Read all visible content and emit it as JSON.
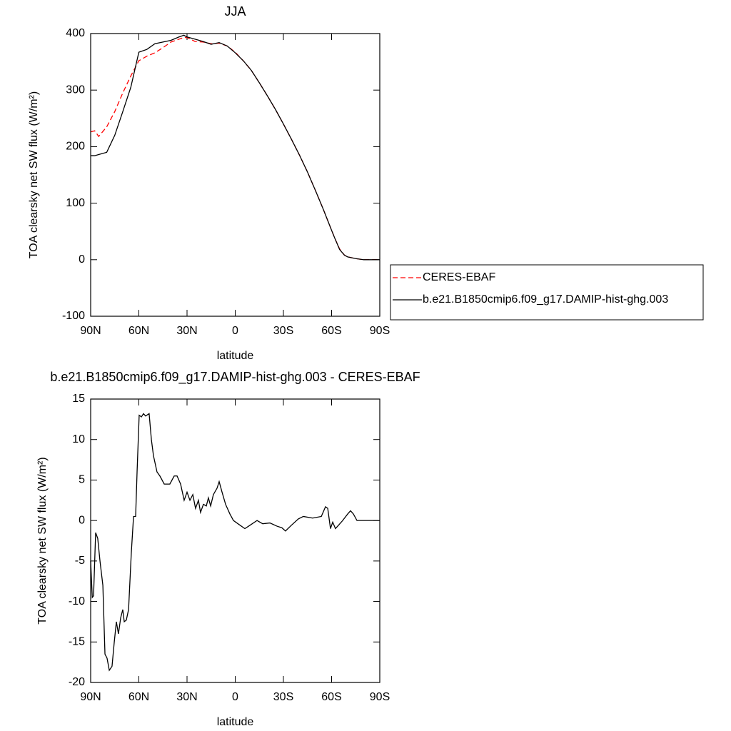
{
  "chart_data": [
    {
      "type": "line",
      "title": "JJA",
      "xlabel": "latitude",
      "ylabel": "TOA clearsky net SW flux (W/m²)",
      "x": [
        90,
        87.5,
        85,
        80,
        75,
        70,
        65,
        60,
        55,
        50,
        45,
        40,
        35,
        32,
        30,
        25,
        20,
        15,
        10,
        5,
        0,
        -5,
        -10,
        -15,
        -20,
        -25,
        -30,
        -35,
        -40,
        -45,
        -50,
        -55,
        -60,
        -62,
        -65,
        -68,
        -70,
        -75,
        -80,
        -85,
        -90
      ],
      "series": [
        {
          "name": "CERES-EBAF",
          "color": "#ff0000",
          "dashed": true,
          "values": [
            226,
            228,
            218,
            235,
            262,
            295,
            325,
            352,
            360,
            366,
            375,
            385,
            390,
            393,
            393,
            386,
            385,
            382,
            383,
            378,
            367,
            352,
            335,
            313,
            290,
            266,
            240,
            213,
            185,
            155,
            122,
            88,
            52,
            38,
            19,
            8,
            5,
            2,
            0,
            0,
            0
          ]
        },
        {
          "name": "b.e21.B1850cmip6.f09_g17.DAMIP-hist-ghg.003",
          "color": "#000000",
          "dashed": false,
          "values": [
            184,
            184,
            186,
            190,
            220,
            262,
            305,
            367,
            372,
            382,
            385,
            388,
            394,
            397,
            394,
            390,
            386,
            381,
            384,
            378,
            366,
            352,
            335,
            313,
            290,
            266,
            240,
            213,
            185,
            155,
            122,
            88,
            52,
            38,
            18,
            8,
            5,
            2,
            0,
            0,
            0
          ]
        }
      ],
      "xlim": [
        90,
        -90
      ],
      "xticks": [
        {
          "value": 90,
          "label": "90N"
        },
        {
          "value": 60,
          "label": "60N"
        },
        {
          "value": 30,
          "label": "30N"
        },
        0,
        {
          "value": -30,
          "label": "30S"
        },
        {
          "value": -60,
          "label": "60S"
        },
        {
          "value": -90,
          "label": "90S"
        }
      ],
      "ylim": [
        -100,
        400
      ],
      "yticks": [
        -100,
        0,
        100,
        200,
        300,
        400
      ],
      "legend": "right"
    },
    {
      "type": "line",
      "title": "b.e21.B1850cmip6.f09_g17.DAMIP-hist-ghg.003 - CERES-EBAF",
      "xlabel": "latitude",
      "ylabel": "TOA clearsky net SW flux (W/m²)",
      "color": "#000000",
      "x": [
        90,
        89,
        88.2,
        86.9,
        85.6,
        84.2,
        82.4,
        81.1,
        79.8,
        78.4,
        76.7,
        75.3,
        74,
        72.7,
        71.3,
        70,
        69.1,
        67.8,
        66.4,
        64.7,
        63.3,
        62,
        61.1,
        59.8,
        58.4,
        57.1,
        55.8,
        53.6,
        52.2,
        50.9,
        48.7,
        46.9,
        44.2,
        40.7,
        38,
        36.2,
        34,
        31.8,
        30,
        28.2,
        26.4,
        24.7,
        22.9,
        21.6,
        19.8,
        18,
        16.7,
        15.3,
        13.6,
        11.3,
        10,
        8.2,
        6,
        3.3,
        1.1,
        -2.4,
        -6,
        -9.1,
        -13.6,
        -17.1,
        -21.6,
        -26,
        -29.1,
        -31.3,
        -34.9,
        -39.3,
        -42.4,
        -48.2,
        -53.6,
        -56.2,
        -57.6,
        -59.3,
        -60.7,
        -62.4,
        -64.7,
        -66.9,
        -70,
        -71.8,
        -73.6,
        -75.8,
        -90
      ],
      "values": [
        -5,
        -9.5,
        -9.3,
        -1.5,
        -2.2,
        -5,
        -8,
        -16.5,
        -17,
        -18.5,
        -18,
        -15,
        -12.5,
        -14,
        -12,
        -11,
        -12.5,
        -12.3,
        -11,
        -4,
        0.5,
        0.5,
        6,
        13,
        12.8,
        13.2,
        12.9,
        13.2,
        10,
        8,
        6,
        5.5,
        4.5,
        4.5,
        5.5,
        5.5,
        4.5,
        2.5,
        3.5,
        2.5,
        3.2,
        1.5,
        2.5,
        1,
        2,
        1.8,
        2.8,
        1.8,
        3.2,
        4,
        4.8,
        3.5,
        2,
        0.8,
        0,
        -0.5,
        -1,
        -0.6,
        0,
        -0.4,
        -0.3,
        -0.7,
        -0.9,
        -1.3,
        -0.6,
        0.2,
        0.5,
        0.3,
        0.5,
        1.7,
        1.5,
        -1,
        -0.2,
        -1,
        -0.5,
        0,
        0.8,
        1.2,
        0.8,
        0,
        0
      ],
      "xlim": [
        90,
        -90
      ],
      "xticks": [
        {
          "value": 90,
          "label": "90N"
        },
        {
          "value": 60,
          "label": "60N"
        },
        {
          "value": 30,
          "label": "30N"
        },
        0,
        {
          "value": -30,
          "label": "30S"
        },
        {
          "value": -60,
          "label": "60S"
        },
        {
          "value": -90,
          "label": "90S"
        }
      ],
      "ylim": [
        -20,
        15
      ],
      "yticks": [
        -20,
        -15,
        -10,
        -5,
        0,
        5,
        10,
        15
      ]
    }
  ]
}
